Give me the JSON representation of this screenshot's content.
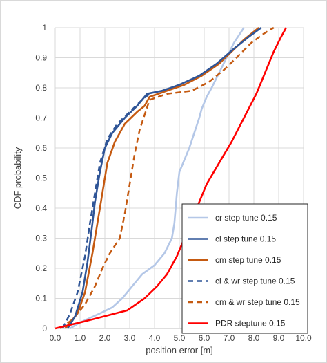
{
  "chart_data": {
    "type": "line",
    "title": "",
    "xlabel": "position error [m]",
    "ylabel": "CDF probability",
    "xlim": [
      0,
      10
    ],
    "ylim": [
      0,
      1
    ],
    "x_ticks": [
      "0.0",
      "1.0",
      "2.0",
      "3.0",
      "4.0",
      "5.0",
      "6.0",
      "7.0",
      "8.0",
      "9.0",
      "10.0"
    ],
    "y_ticks": [
      "0",
      "0.1",
      "0.2",
      "0.3",
      "0.4",
      "0.5",
      "0.6",
      "0.7",
      "0.8",
      "0.9",
      "1"
    ],
    "grid": true,
    "legend_position": "bottom-right",
    "series": [
      {
        "name": "cr step tune 0.15",
        "color": "#b4c7e7",
        "dash": "solid",
        "points": [
          [
            0.6,
            0
          ],
          [
            1.0,
            0.02
          ],
          [
            1.8,
            0.05
          ],
          [
            2.3,
            0.07
          ],
          [
            2.7,
            0.1
          ],
          [
            3.1,
            0.14
          ],
          [
            3.5,
            0.18
          ],
          [
            4.0,
            0.21
          ],
          [
            4.4,
            0.25
          ],
          [
            4.7,
            0.3
          ],
          [
            4.8,
            0.35
          ],
          [
            4.9,
            0.45
          ],
          [
            5.0,
            0.52
          ],
          [
            5.2,
            0.56
          ],
          [
            5.4,
            0.6
          ],
          [
            5.6,
            0.65
          ],
          [
            5.8,
            0.7
          ],
          [
            5.9,
            0.73
          ],
          [
            6.1,
            0.77
          ],
          [
            6.3,
            0.8
          ],
          [
            6.6,
            0.85
          ],
          [
            6.9,
            0.9
          ],
          [
            7.2,
            0.95
          ],
          [
            7.6,
            1.0
          ]
        ]
      },
      {
        "name": "cl step tune 0.15",
        "color": "#2f5597",
        "dash": "solid",
        "points": [
          [
            0.5,
            0
          ],
          [
            0.8,
            0.04
          ],
          [
            1.1,
            0.12
          ],
          [
            1.3,
            0.22
          ],
          [
            1.5,
            0.35
          ],
          [
            1.6,
            0.42
          ],
          [
            1.8,
            0.52
          ],
          [
            2.0,
            0.6
          ],
          [
            2.3,
            0.65
          ],
          [
            2.8,
            0.7
          ],
          [
            3.3,
            0.74
          ],
          [
            3.7,
            0.78
          ],
          [
            4.3,
            0.79
          ],
          [
            5.0,
            0.81
          ],
          [
            5.8,
            0.84
          ],
          [
            6.5,
            0.88
          ],
          [
            7.2,
            0.93
          ],
          [
            7.8,
            0.97
          ],
          [
            8.3,
            1.0
          ]
        ]
      },
      {
        "name": "cm step tune 0.15",
        "color": "#c55a11",
        "dash": "solid",
        "points": [
          [
            0.4,
            0
          ],
          [
            0.9,
            0.05
          ],
          [
            1.2,
            0.12
          ],
          [
            1.5,
            0.25
          ],
          [
            1.7,
            0.35
          ],
          [
            1.9,
            0.45
          ],
          [
            2.1,
            0.55
          ],
          [
            2.4,
            0.62
          ],
          [
            2.8,
            0.68
          ],
          [
            3.3,
            0.72
          ],
          [
            3.6,
            0.74
          ],
          [
            3.8,
            0.77
          ],
          [
            4.5,
            0.79
          ],
          [
            5.2,
            0.81
          ],
          [
            5.9,
            0.84
          ],
          [
            6.6,
            0.88
          ],
          [
            7.1,
            0.92
          ],
          [
            7.6,
            0.96
          ],
          [
            8.2,
            1.0
          ]
        ]
      },
      {
        "name": "cl & wr step tune 0.15",
        "color": "#2f5597",
        "dash": "dashed",
        "points": [
          [
            0.3,
            0
          ],
          [
            0.6,
            0.05
          ],
          [
            0.9,
            0.12
          ],
          [
            1.2,
            0.24
          ],
          [
            1.4,
            0.35
          ],
          [
            1.6,
            0.45
          ],
          [
            1.8,
            0.55
          ],
          [
            2.1,
            0.63
          ],
          [
            2.5,
            0.68
          ],
          [
            3.0,
            0.72
          ],
          [
            3.5,
            0.76
          ],
          [
            3.8,
            0.78
          ]
        ]
      },
      {
        "name": "cm & wr step tune 0.15",
        "color": "#c55a11",
        "dash": "dashed",
        "points": [
          [
            0.2,
            0
          ],
          [
            0.7,
            0.03
          ],
          [
            1.2,
            0.08
          ],
          [
            1.6,
            0.14
          ],
          [
            1.9,
            0.2
          ],
          [
            2.2,
            0.25
          ],
          [
            2.6,
            0.3
          ],
          [
            2.8,
            0.38
          ],
          [
            3.0,
            0.48
          ],
          [
            3.2,
            0.58
          ],
          [
            3.4,
            0.66
          ],
          [
            3.6,
            0.71
          ],
          [
            3.8,
            0.76
          ],
          [
            4.5,
            0.78
          ],
          [
            5.5,
            0.79
          ],
          [
            6.2,
            0.82
          ],
          [
            6.8,
            0.86
          ],
          [
            7.3,
            0.9
          ],
          [
            7.9,
            0.95
          ],
          [
            8.4,
            0.98
          ],
          [
            8.8,
            1.0
          ]
        ]
      },
      {
        "name": "PDR steptune 0.15",
        "color": "#ff0000",
        "dash": "solid",
        "points": [
          [
            0,
            0
          ],
          [
            1.5,
            0.03
          ],
          [
            2.9,
            0.06
          ],
          [
            3.6,
            0.1
          ],
          [
            4.1,
            0.14
          ],
          [
            4.5,
            0.18
          ],
          [
            4.9,
            0.24
          ],
          [
            5.3,
            0.32
          ],
          [
            5.7,
            0.4
          ],
          [
            6.1,
            0.48
          ],
          [
            6.6,
            0.55
          ],
          [
            7.1,
            0.62
          ],
          [
            7.6,
            0.7
          ],
          [
            8.1,
            0.78
          ],
          [
            8.5,
            0.86
          ],
          [
            8.8,
            0.92
          ],
          [
            9.1,
            0.97
          ],
          [
            9.3,
            1.0
          ]
        ]
      }
    ]
  }
}
